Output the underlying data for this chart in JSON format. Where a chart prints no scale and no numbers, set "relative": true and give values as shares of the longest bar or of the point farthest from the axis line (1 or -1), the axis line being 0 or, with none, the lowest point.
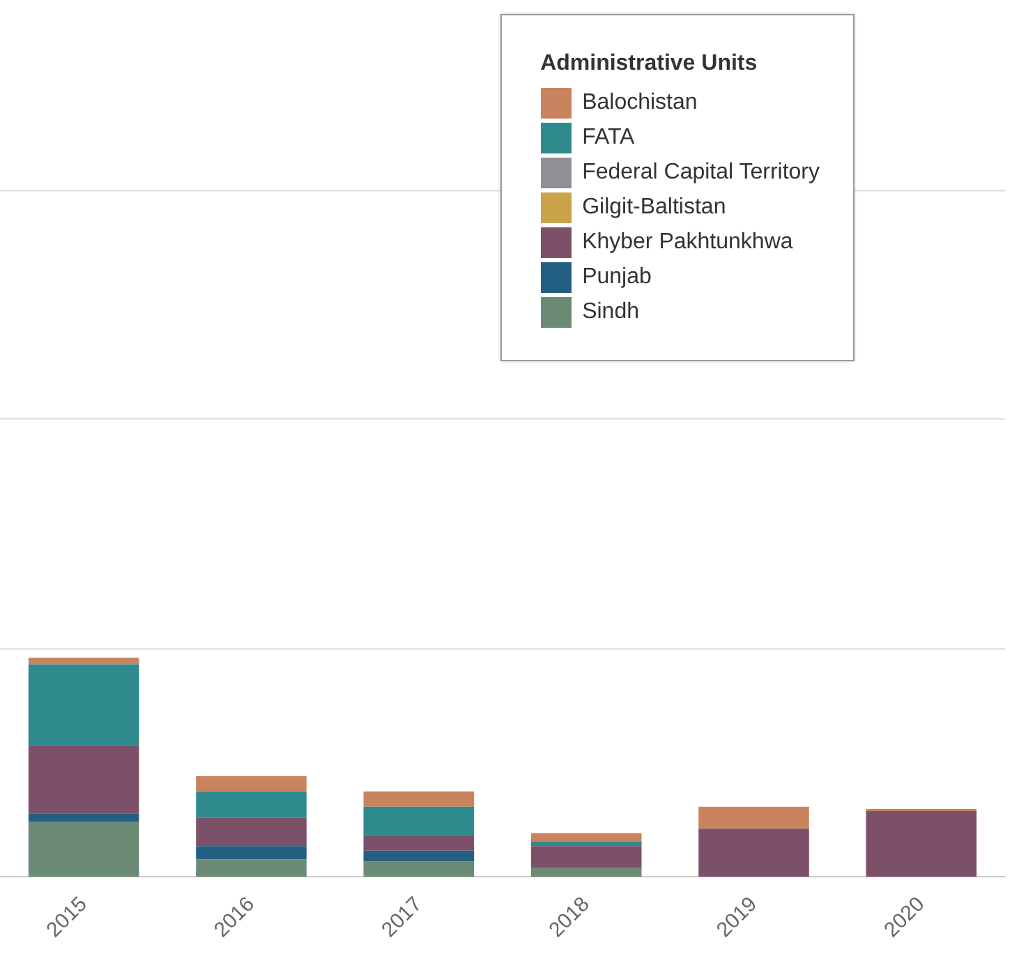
{
  "chart_data": {
    "type": "bar",
    "stacked": true,
    "relative": true,
    "legend_title": "Administrative Units",
    "legend": "top right",
    "ref_lines": [
      {
        "axis": "y",
        "value": 1.04,
        "color": "#d9d9d9"
      },
      {
        "axis": "y",
        "value": 2.09,
        "color": "#d9d9d9"
      },
      {
        "axis": "y",
        "value": 3.13,
        "color": "#d9d9d9"
      }
    ],
    "categories": [
      "2015",
      "2016",
      "2017",
      "2018",
      "2019",
      "2020"
    ],
    "series": [
      {
        "name": "Sindh",
        "color": "#6a8a74",
        "values": [
          0.25,
          0.08,
          0.07,
          0.04,
          0,
          0
        ]
      },
      {
        "name": "Punjab",
        "color": "#235f82",
        "values": [
          0.04,
          0.06,
          0.05,
          0,
          0,
          0
        ]
      },
      {
        "name": "Khyber Pakhtunkhwa",
        "color": "#7c5068",
        "values": [
          0.31,
          0.13,
          0.07,
          0.1,
          0.22,
          0.3
        ]
      },
      {
        "name": "Gilgit-Baltistan",
        "color": "#c9a24a",
        "values": [
          0,
          0,
          0,
          0,
          0,
          0
        ]
      },
      {
        "name": "Federal Capital Territory",
        "color": "#8e9096",
        "values": [
          0,
          0,
          0,
          0,
          0,
          0
        ]
      },
      {
        "name": "FATA",
        "color": "#2e8a8c",
        "values": [
          0.37,
          0.12,
          0.13,
          0.02,
          0,
          0
        ]
      },
      {
        "name": "Balochistan",
        "color": "#c9845f",
        "values": [
          0.03,
          0.07,
          0.07,
          0.04,
          0.1,
          0.01
        ]
      }
    ]
  }
}
